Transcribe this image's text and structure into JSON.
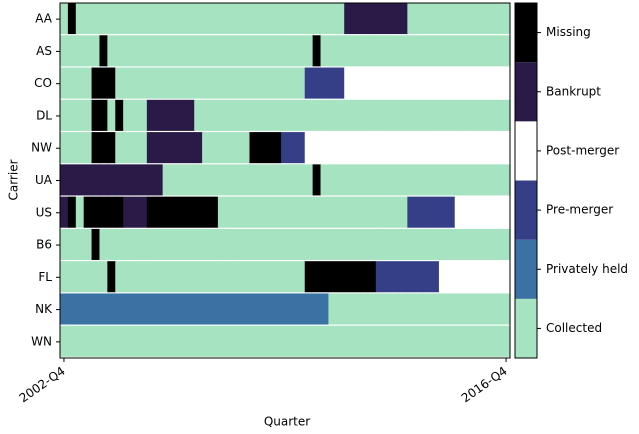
{
  "chart_data": {
    "type": "heatmap",
    "xlabel": "Quarter",
    "ylabel": "Carrier",
    "categories": [
      "AA",
      "AS",
      "CO",
      "DL",
      "NW",
      "UA",
      "US",
      "B6",
      "FL",
      "NK",
      "WN"
    ],
    "x": [
      "2002-Q4",
      null,
      null,
      null,
      null,
      null,
      null,
      null,
      null,
      null,
      null,
      null,
      null,
      null,
      null,
      null,
      null,
      null,
      null,
      null,
      null,
      null,
      null,
      null,
      null,
      null,
      null,
      null,
      null,
      null,
      null,
      null,
      null,
      null,
      null,
      null,
      null,
      null,
      null,
      null,
      null,
      null,
      null,
      null,
      null,
      null,
      null,
      null,
      null,
      null,
      null,
      null,
      null,
      null,
      null,
      null,
      "2016-Q4"
    ],
    "z": [
      [
        0,
        5,
        0,
        0,
        0,
        0,
        0,
        0,
        0,
        0,
        0,
        0,
        0,
        0,
        0,
        0,
        0,
        0,
        0,
        0,
        0,
        0,
        0,
        0,
        0,
        0,
        0,
        0,
        0,
        0,
        0,
        0,
        0,
        0,
        0,
        0,
        4,
        4,
        4,
        4,
        4,
        4,
        4,
        4,
        0,
        0,
        0,
        0,
        0,
        0,
        0,
        0,
        0,
        0,
        0,
        0,
        0
      ],
      [
        0,
        0,
        0,
        0,
        0,
        5,
        0,
        0,
        0,
        0,
        0,
        0,
        0,
        0,
        0,
        0,
        0,
        0,
        0,
        0,
        0,
        0,
        0,
        0,
        0,
        0,
        0,
        0,
        0,
        0,
        0,
        0,
        5,
        0,
        0,
        0,
        0,
        0,
        0,
        0,
        0,
        0,
        0,
        0,
        0,
        0,
        0,
        0,
        0,
        0,
        0,
        0,
        0,
        0,
        0,
        0,
        0
      ],
      [
        0,
        0,
        0,
        0,
        5,
        5,
        5,
        0,
        0,
        0,
        0,
        0,
        0,
        0,
        0,
        0,
        0,
        0,
        0,
        0,
        0,
        0,
        0,
        0,
        0,
        0,
        0,
        0,
        0,
        0,
        0,
        2,
        2,
        2,
        2,
        2,
        3,
        3,
        3,
        3,
        3,
        3,
        3,
        3,
        3,
        3,
        3,
        3,
        3,
        3,
        3,
        3,
        3,
        3,
        3,
        3,
        3
      ],
      [
        0,
        0,
        0,
        0,
        5,
        5,
        0,
        5,
        0,
        0,
        0,
        4,
        4,
        4,
        4,
        4,
        4,
        0,
        0,
        0,
        0,
        0,
        0,
        0,
        0,
        0,
        0,
        0,
        0,
        0,
        0,
        0,
        0,
        0,
        0,
        0,
        0,
        0,
        0,
        0,
        0,
        0,
        0,
        0,
        0,
        0,
        0,
        0,
        0,
        0,
        0,
        0,
        0,
        0,
        0,
        0,
        0
      ],
      [
        0,
        0,
        0,
        0,
        5,
        5,
        5,
        0,
        0,
        0,
        0,
        4,
        4,
        4,
        4,
        4,
        4,
        4,
        0,
        0,
        0,
        0,
        0,
        0,
        5,
        5,
        5,
        5,
        2,
        2,
        2,
        3,
        3,
        3,
        3,
        3,
        3,
        3,
        3,
        3,
        3,
        3,
        3,
        3,
        3,
        3,
        3,
        3,
        3,
        3,
        3,
        3,
        3,
        3,
        3,
        3,
        3
      ],
      [
        4,
        4,
        4,
        4,
        4,
        4,
        4,
        4,
        4,
        4,
        4,
        4,
        4,
        0,
        0,
        0,
        0,
        0,
        0,
        0,
        0,
        0,
        0,
        0,
        0,
        0,
        0,
        0,
        0,
        0,
        0,
        0,
        5,
        0,
        0,
        0,
        0,
        0,
        0,
        0,
        0,
        0,
        0,
        0,
        0,
        0,
        0,
        0,
        0,
        0,
        0,
        0,
        0,
        0,
        0,
        0,
        0
      ],
      [
        4,
        5,
        0,
        5,
        5,
        5,
        5,
        5,
        4,
        4,
        4,
        5,
        5,
        5,
        5,
        5,
        5,
        5,
        5,
        5,
        0,
        0,
        0,
        0,
        0,
        0,
        0,
        0,
        0,
        0,
        0,
        0,
        0,
        0,
        0,
        0,
        0,
        0,
        0,
        0,
        0,
        0,
        0,
        0,
        2,
        2,
        2,
        2,
        2,
        2,
        3,
        3,
        3,
        3,
        3,
        3,
        3
      ],
      [
        0,
        0,
        0,
        0,
        5,
        0,
        0,
        0,
        0,
        0,
        0,
        0,
        0,
        0,
        0,
        0,
        0,
        0,
        0,
        0,
        0,
        0,
        0,
        0,
        0,
        0,
        0,
        0,
        0,
        0,
        0,
        0,
        0,
        0,
        0,
        0,
        0,
        0,
        0,
        0,
        0,
        0,
        0,
        0,
        0,
        0,
        0,
        0,
        0,
        0,
        0,
        0,
        0,
        0,
        0,
        0,
        0
      ],
      [
        0,
        0,
        0,
        0,
        0,
        0,
        5,
        0,
        0,
        0,
        0,
        0,
        0,
        0,
        0,
        0,
        0,
        0,
        0,
        0,
        0,
        0,
        0,
        0,
        0,
        0,
        0,
        0,
        0,
        0,
        0,
        5,
        5,
        5,
        5,
        5,
        5,
        5,
        5,
        5,
        2,
        2,
        2,
        2,
        2,
        2,
        2,
        2,
        3,
        3,
        3,
        3,
        3,
        3,
        3,
        3,
        3
      ],
      [
        1,
        1,
        1,
        1,
        1,
        1,
        1,
        1,
        1,
        1,
        1,
        1,
        1,
        1,
        1,
        1,
        1,
        1,
        1,
        1,
        1,
        1,
        1,
        1,
        1,
        1,
        1,
        1,
        1,
        1,
        1,
        1,
        1,
        1,
        0,
        0,
        0,
        0,
        0,
        0,
        0,
        0,
        0,
        0,
        0,
        0,
        0,
        0,
        0,
        0,
        0,
        0,
        0,
        0,
        0,
        0,
        0
      ],
      [
        0,
        0,
        0,
        0,
        0,
        0,
        0,
        0,
        0,
        0,
        0,
        0,
        0,
        0,
        0,
        0,
        0,
        0,
        0,
        0,
        0,
        0,
        0,
        0,
        0,
        0,
        0,
        0,
        0,
        0,
        0,
        0,
        0,
        0,
        0,
        0,
        0,
        0,
        0,
        0,
        0,
        0,
        0,
        0,
        0,
        0,
        0,
        0,
        0,
        0,
        0,
        0,
        0,
        0,
        0,
        0,
        0
      ]
    ],
    "colors": [
      "#a6e3c0",
      "#3b72a4",
      "#343f88",
      "#ffffff",
      "#2a1a48",
      "#000000"
    ],
    "clim": [
      -0.5,
      5.5
    ],
    "cticks": [
      {
        "value": 0,
        "label": "Collected"
      },
      {
        "value": 1,
        "label": "Privately held"
      },
      {
        "value": 2,
        "label": "Pre-merger"
      },
      {
        "value": 3,
        "label": "Post-merger"
      },
      {
        "value": 4,
        "label": "Bankrupt"
      },
      {
        "value": 5,
        "label": "Missing"
      }
    ]
  }
}
